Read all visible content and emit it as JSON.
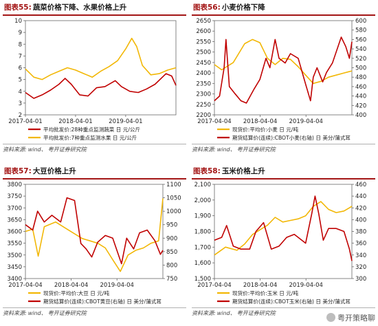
{
  "panels": [
    {
      "num": "图表55:",
      "title": "蔬菜价格下降、水果价格上升",
      "source_label": "资料来源:",
      "source_a": "wind、",
      "source_b": "粤开证券研究院",
      "chart_data": {
        "type": "line",
        "x_tick_labels": [
          "2017-04-01",
          "2018-04-01",
          "2019-04-01"
        ],
        "x_range": [
          "2017-04-01",
          "2020-04-01"
        ],
        "left_axis": {
          "range": [
            2,
            10
          ],
          "ticks": [
            "2",
            "3",
            "4",
            "5",
            "6",
            "7",
            "8",
            "9",
            "10"
          ]
        },
        "series": [
          {
            "name": "平均批发价:28种重点监测蔬菜 日 元/公斤",
            "color": "#c00000",
            "axis": "left",
            "points": [
              [
                "2017-04-01",
                3.9
              ],
              [
                "2017-06-01",
                3.4
              ],
              [
                "2017-08-01",
                3.7
              ],
              [
                "2017-10-01",
                4.1
              ],
              [
                "2017-12-01",
                4.6
              ],
              [
                "2018-01-15",
                5.1
              ],
              [
                "2018-03-01",
                4.6
              ],
              [
                "2018-05-01",
                3.7
              ],
              [
                "2018-07-01",
                3.6
              ],
              [
                "2018-09-01",
                4.3
              ],
              [
                "2018-11-01",
                4.4
              ],
              [
                "2019-01-15",
                4.9
              ],
              [
                "2019-03-01",
                4.4
              ],
              [
                "2019-05-01",
                4.0
              ],
              [
                "2019-07-01",
                3.9
              ],
              [
                "2019-09-01",
                4.2
              ],
              [
                "2019-11-01",
                4.6
              ],
              [
                "2020-01-20",
                5.5
              ],
              [
                "2020-03-01",
                5.3
              ],
              [
                "2020-04-01",
                4.5
              ]
            ]
          },
          {
            "name": "平均批发价:7种重点监测水果 日 元/公斤",
            "color": "#f2b705",
            "axis": "left",
            "points": [
              [
                "2017-04-01",
                5.9
              ],
              [
                "2017-06-01",
                5.2
              ],
              [
                "2017-08-01",
                5.0
              ],
              [
                "2017-10-01",
                5.4
              ],
              [
                "2017-12-01",
                5.7
              ],
              [
                "2018-02-01",
                6.0
              ],
              [
                "2018-04-01",
                5.8
              ],
              [
                "2018-06-01",
                5.5
              ],
              [
                "2018-08-01",
                5.2
              ],
              [
                "2018-10-01",
                5.7
              ],
              [
                "2018-12-01",
                6.1
              ],
              [
                "2019-02-01",
                6.6
              ],
              [
                "2019-04-01",
                7.6
              ],
              [
                "2019-05-15",
                8.5
              ],
              [
                "2019-06-20",
                7.8
              ],
              [
                "2019-08-01",
                6.2
              ],
              [
                "2019-10-01",
                5.4
              ],
              [
                "2019-12-01",
                5.5
              ],
              [
                "2020-02-01",
                5.8
              ],
              [
                "2020-04-01",
                6.0
              ]
            ]
          }
        ]
      }
    },
    {
      "num": "图表56:",
      "title": "小麦价格下降",
      "source_label": "资料来源:",
      "source_a": "wind、",
      "source_b": "粤开证券研究院",
      "chart_data": {
        "type": "line",
        "x_tick_labels": [
          "2017-04-04",
          "2018-04-04",
          "2019-04-04"
        ],
        "x_range": [
          "2017-04-04",
          "2020-04-04"
        ],
        "left_axis": {
          "range": [
            2200,
            2650
          ],
          "ticks": [
            "2200",
            "2250",
            "2300",
            "2350",
            "2400",
            "2450",
            "2500",
            "2550",
            "2600",
            "2650"
          ]
        },
        "right_axis": {
          "range": [
            400,
            600
          ],
          "ticks": [
            "400",
            "420",
            "440",
            "460",
            "480",
            "500",
            "520",
            "540",
            "560",
            "580",
            "600"
          ]
        },
        "series": [
          {
            "name": "现货价:平均价:小麦 日 元/吨",
            "color": "#f2b705",
            "axis": "left",
            "points": [
              [
                "2017-04-04",
                2440
              ],
              [
                "2017-06-01",
                2415
              ],
              [
                "2017-09-01",
                2450
              ],
              [
                "2017-12-01",
                2540
              ],
              [
                "2018-02-01",
                2560
              ],
              [
                "2018-04-01",
                2545
              ],
              [
                "2018-06-01",
                2470
              ],
              [
                "2018-08-01",
                2440
              ],
              [
                "2018-10-01",
                2470
              ],
              [
                "2018-12-01",
                2465
              ],
              [
                "2019-02-01",
                2430
              ],
              [
                "2019-04-01",
                2390
              ],
              [
                "2019-06-01",
                2350
              ],
              [
                "2019-08-01",
                2360
              ],
              [
                "2019-10-01",
                2380
              ],
              [
                "2019-12-01",
                2390
              ],
              [
                "2020-02-01",
                2400
              ],
              [
                "2020-04-04",
                2410
              ]
            ]
          },
          {
            "name": "期货结算价(连续):CBOT小麦(右轴) 日 美分/蒲式耳",
            "color": "#c00000",
            "axis": "right",
            "points": [
              [
                "2017-04-04",
                430
              ],
              [
                "2017-05-15",
                440
              ],
              [
                "2017-06-20",
                500
              ],
              [
                "2017-07-05",
                560
              ],
              [
                "2017-08-01",
                460
              ],
              [
                "2017-09-15",
                445
              ],
              [
                "2017-11-01",
                430
              ],
              [
                "2017-12-15",
                425
              ],
              [
                "2018-02-15",
                455
              ],
              [
                "2018-04-01",
                475
              ],
              [
                "2018-05-20",
                520
              ],
              [
                "2018-06-20",
                500
              ],
              [
                "2018-08-01",
                560
              ],
              [
                "2018-09-01",
                520
              ],
              [
                "2018-10-20",
                510
              ],
              [
                "2018-12-01",
                530
              ],
              [
                "2019-02-01",
                520
              ],
              [
                "2019-04-01",
                465
              ],
              [
                "2019-05-10",
                430
              ],
              [
                "2019-06-01",
                480
              ],
              [
                "2019-07-01",
                500
              ],
              [
                "2019-08-15",
                470
              ],
              [
                "2019-09-15",
                490
              ],
              [
                "2019-11-01",
                510
              ],
              [
                "2020-01-10",
                565
              ],
              [
                "2020-02-15",
                545
              ],
              [
                "2020-03-15",
                520
              ],
              [
                "2020-04-04",
                555
              ]
            ]
          }
        ]
      }
    },
    {
      "num": "图表57:",
      "title": "大豆价格上升",
      "source_label": "资料来源:",
      "source_a": "wind、",
      "source_b": "粤开证券研究院",
      "chart_data": {
        "type": "line",
        "x_tick_labels": [
          "2017-04-04",
          "2018-04-04",
          "2019-04-04"
        ],
        "x_range": [
          "2017-04-04",
          "2020-04-04"
        ],
        "left_axis": {
          "range": [
            3400,
            3800
          ],
          "ticks": [
            "3400",
            "3450",
            "3500",
            "3550",
            "3600",
            "3650",
            "3700",
            "3750",
            "3800"
          ]
        },
        "right_axis": {
          "range": [
            750,
            1100
          ],
          "ticks": [
            "750",
            "800",
            "850",
            "900",
            "950",
            "1000",
            "1050",
            "1100"
          ]
        },
        "series": [
          {
            "name": "现货价:平均价:大豆 日 元/吨",
            "color": "#f2b705",
            "axis": "left",
            "points": [
              [
                "2017-04-04",
                3600
              ],
              [
                "2017-06-01",
                3610
              ],
              [
                "2017-07-15",
                3495
              ],
              [
                "2017-09-01",
                3620
              ],
              [
                "2017-12-01",
                3640
              ],
              [
                "2018-03-01",
                3610
              ],
              [
                "2018-05-01",
                3590
              ],
              [
                "2018-07-01",
                3570
              ],
              [
                "2018-09-01",
                3560
              ],
              [
                "2018-11-01",
                3550
              ],
              [
                "2019-01-01",
                3530
              ],
              [
                "2019-03-01",
                3480
              ],
              [
                "2019-05-01",
                3430
              ],
              [
                "2019-07-01",
                3500
              ],
              [
                "2019-09-01",
                3520
              ],
              [
                "2019-11-01",
                3530
              ],
              [
                "2020-01-01",
                3550
              ],
              [
                "2020-03-01",
                3560
              ],
              [
                "2020-04-04",
                3740
              ]
            ]
          },
          {
            "name": "期货结算价(连续):CBOT黄豆(右轴) 日 美分/蒲式耳",
            "color": "#c00000",
            "axis": "right",
            "points": [
              [
                "2017-04-04",
                950
              ],
              [
                "2017-06-01",
                930
              ],
              [
                "2017-07-10",
                1000
              ],
              [
                "2017-09-01",
                960
              ],
              [
                "2017-11-01",
                985
              ],
              [
                "2018-01-10",
                960
              ],
              [
                "2018-03-01",
                1050
              ],
              [
                "2018-05-01",
                1040
              ],
              [
                "2018-06-20",
                880
              ],
              [
                "2018-08-01",
                860
              ],
              [
                "2018-09-15",
                830
              ],
              [
                "2018-11-01",
                885
              ],
              [
                "2019-01-01",
                910
              ],
              [
                "2019-03-01",
                900
              ],
              [
                "2019-05-10",
                805
              ],
              [
                "2019-06-20",
                900
              ],
              [
                "2019-08-15",
                860
              ],
              [
                "2019-10-01",
                920
              ],
              [
                "2019-12-01",
                930
              ],
              [
                "2020-02-01",
                890
              ],
              [
                "2020-03-15",
                840
              ],
              [
                "2020-04-04",
                855
              ]
            ]
          }
        ]
      }
    },
    {
      "num": "图表58:",
      "title": "玉米价格上升",
      "source_label": "资料来源:",
      "source_a": "wind、",
      "source_b": "粤开证券研究院",
      "chart_data": {
        "type": "line",
        "x_tick_labels": [
          "2017-04-04",
          "2018-04-04",
          "2019-04-04"
        ],
        "x_range": [
          "2017-04-04",
          "2020-04-04"
        ],
        "left_axis": {
          "range": [
            1500,
            2100
          ],
          "ticks": [
            "1,500",
            "1,600",
            "1,700",
            "1,800",
            "1,900",
            "2,000",
            "2,100"
          ]
        },
        "right_axis": {
          "range": [
            300,
            460
          ],
          "ticks": [
            "300",
            "320",
            "340",
            "360",
            "380",
            "400",
            "420",
            "440",
            "460"
          ]
        },
        "series": [
          {
            "name": "现货价:平均价:玉米 日 元/吨",
            "color": "#f2b705",
            "axis": "left",
            "points": [
              [
                "2017-04-04",
                1650
              ],
              [
                "2017-07-01",
                1700
              ],
              [
                "2017-10-01",
                1680
              ],
              [
                "2017-12-01",
                1720
              ],
              [
                "2018-02-01",
                1780
              ],
              [
                "2018-04-01",
                1810
              ],
              [
                "2018-06-01",
                1840
              ],
              [
                "2018-08-01",
                1890
              ],
              [
                "2018-10-01",
                1860
              ],
              [
                "2018-12-01",
                1870
              ],
              [
                "2019-02-01",
                1880
              ],
              [
                "2019-04-01",
                1900
              ],
              [
                "2019-06-01",
                1960
              ],
              [
                "2019-08-01",
                1990
              ],
              [
                "2019-10-01",
                1940
              ],
              [
                "2019-12-01",
                1920
              ],
              [
                "2020-02-01",
                1930
              ],
              [
                "2020-04-04",
                1960
              ]
            ]
          },
          {
            "name": "期货结算价(连续):CBOT玉米(右轴) 日 美分/蒲式耳",
            "color": "#c00000",
            "axis": "right",
            "points": [
              [
                "2017-04-04",
                365
              ],
              [
                "2017-06-01",
                370
              ],
              [
                "2017-07-10",
                390
              ],
              [
                "2017-09-01",
                355
              ],
              [
                "2017-11-01",
                350
              ],
              [
                "2018-01-10",
                350
              ],
              [
                "2018-03-01",
                380
              ],
              [
                "2018-05-01",
                395
              ],
              [
                "2018-07-01",
                350
              ],
              [
                "2018-09-01",
                355
              ],
              [
                "2018-11-01",
                370
              ],
              [
                "2019-01-01",
                375
              ],
              [
                "2019-04-01",
                360
              ],
              [
                "2019-05-20",
                410
              ],
              [
                "2019-06-15",
                440
              ],
              [
                "2019-07-15",
                410
              ],
              [
                "2019-08-20",
                365
              ],
              [
                "2019-10-01",
                385
              ],
              [
                "2019-12-01",
                385
              ],
              [
                "2020-02-01",
                380
              ],
              [
                "2020-03-15",
                350
              ],
              [
                "2020-04-04",
                330
              ]
            ]
          }
        ]
      }
    }
  ],
  "watermark": "粤开策略聊"
}
